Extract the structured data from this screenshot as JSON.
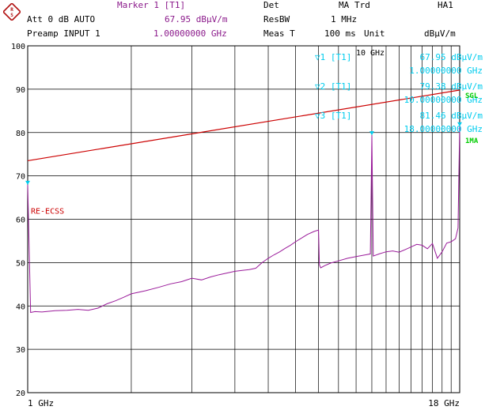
{
  "header": {
    "marker_title": "Marker 1 [T1]",
    "det_label": "Det",
    "det_value": "MA",
    "trd_label": "Trd",
    "ha_label": "HA1",
    "att_label": "Att 0 dB AUTO",
    "marker_level": "67.95 dBµV/m",
    "resbw_label": "ResBW",
    "resbw_value": "1 MHz",
    "preamp_label": "Preamp INPUT 1",
    "marker_freq": "1.00000000 GHz",
    "meast_label": "Meas T",
    "meast_value": "100 ms",
    "unit_label": "Unit",
    "unit_value": "dBµV/m"
  },
  "side": {
    "sgl": "SGL",
    "ima": "1MA"
  },
  "colors": {
    "trace": "#9a1a9a",
    "limit": "#cc0000",
    "marker": "#00ccee",
    "grid": "#000000",
    "side": "#00cc00"
  },
  "icons": {
    "logo": "rohde-schwarz-logo"
  },
  "chart_data": {
    "type": "line",
    "xlabel": "",
    "ylabel": "",
    "x_tick_labels": {
      "start": "1 GHz",
      "stop": "18 GHz"
    },
    "xlim_ghz": [
      1,
      18
    ],
    "ylim": [
      20,
      100
    ],
    "y_ticks": [
      20,
      30,
      40,
      50,
      60,
      70,
      80,
      90,
      100
    ],
    "x_scale": "log",
    "grid": true,
    "extra_x_marker_label": "10 GHz",
    "series": [
      {
        "name": "",
        "color": "#9a1a9a",
        "x_ghz": [
          1.0,
          1.02,
          1.05,
          1.1,
          1.2,
          1.3,
          1.4,
          1.5,
          1.6,
          1.7,
          1.8,
          1.9,
          2.0,
          2.2,
          2.4,
          2.6,
          2.8,
          3.0,
          3.2,
          3.4,
          3.6,
          3.8,
          4.0,
          4.2,
          4.4,
          4.6,
          4.8,
          5.0,
          5.2,
          5.4,
          5.6,
          5.8,
          6.0,
          6.2,
          6.5,
          6.8,
          7.0,
          7.04,
          7.1,
          7.3,
          7.6,
          8.0,
          8.5,
          9.0,
          9.6,
          9.9,
          10.0,
          10.1,
          10.5,
          11.0,
          11.5,
          12.0,
          12.5,
          13.0,
          13.5,
          14.0,
          14.5,
          15.0,
          15.5,
          16.0,
          16.5,
          17.0,
          17.5,
          17.8,
          18.0
        ],
        "y": [
          67.95,
          38.5,
          38.7,
          38.6,
          38.9,
          39.0,
          39.2,
          39.0,
          39.5,
          40.5,
          41.2,
          42.0,
          42.8,
          43.5,
          44.3,
          45.1,
          45.6,
          46.4,
          46.0,
          46.7,
          47.2,
          47.6,
          48.0,
          48.2,
          48.4,
          48.7,
          50.0,
          51.0,
          51.8,
          52.5,
          53.3,
          54.0,
          54.8,
          55.5,
          56.5,
          57.2,
          57.5,
          49.5,
          48.8,
          49.3,
          49.9,
          50.4,
          51.0,
          51.4,
          51.8,
          52.0,
          79.38,
          51.5,
          52.0,
          52.5,
          52.7,
          52.4,
          53.0,
          53.6,
          54.2,
          54.0,
          53.2,
          54.4,
          51.0,
          52.5,
          54.5,
          54.8,
          55.5,
          58.0,
          81.46
        ]
      },
      {
        "name": "RE-ECSS",
        "color": "#cc0000",
        "x_ghz": [
          1,
          18
        ],
        "y": [
          73.5,
          89.8
        ]
      }
    ],
    "markers": [
      {
        "id": "1",
        "trace": "[T1]",
        "level": "67.95 dBµV/m",
        "freq": "1.00000000 GHz",
        "x_ghz": 1.0,
        "y": 67.95
      },
      {
        "id": "2",
        "trace": "[T1]",
        "level": "79.38 dBµV/m",
        "freq": "10.00000000 GHz",
        "x_ghz": 10.0,
        "y": 79.38
      },
      {
        "id": "3",
        "trace": "[T1]",
        "level": "81.46 dBµV/m",
        "freq": "18.00000000 GHz",
        "x_ghz": 18.0,
        "y": 81.46
      }
    ]
  }
}
